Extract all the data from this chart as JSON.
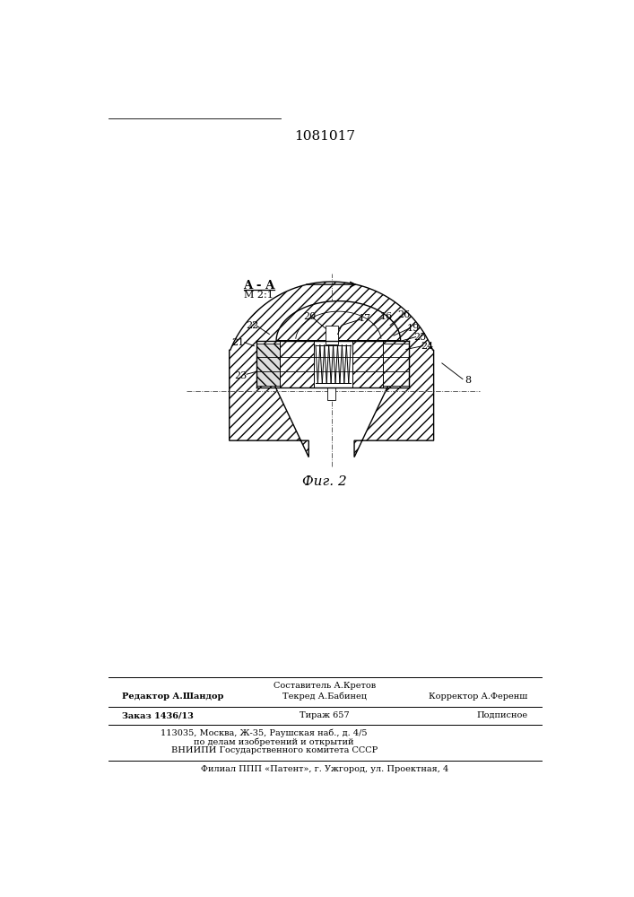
{
  "patent_number": "1081017",
  "fig_label": "Фиг. 2",
  "bg_color": "#ffffff",
  "line_color": "#000000",
  "text_color": "#000000",
  "footer_composer": "Составитель А.Кретов",
  "footer_editor": "Редактор А.Шандор",
  "footer_techred": "Текред А.Бабинец",
  "footer_corrector": "Корректор А.Ференш",
  "footer_order": "Заказ 1436/13",
  "footer_tirazh": "Тираж 657",
  "footer_podpisnoe": "Подписное",
  "footer_vniiipi": "ВНИИПИ Государственного комитета СССР",
  "footer_po_delam": "по делам изобретений и открытий",
  "footer_address": "113035, Москва, Ж-35, Раушская наб., д. 4/5",
  "footer_filial": "Филиал ППП «Патент», г. Ужгород, ул. Проектная, 4"
}
